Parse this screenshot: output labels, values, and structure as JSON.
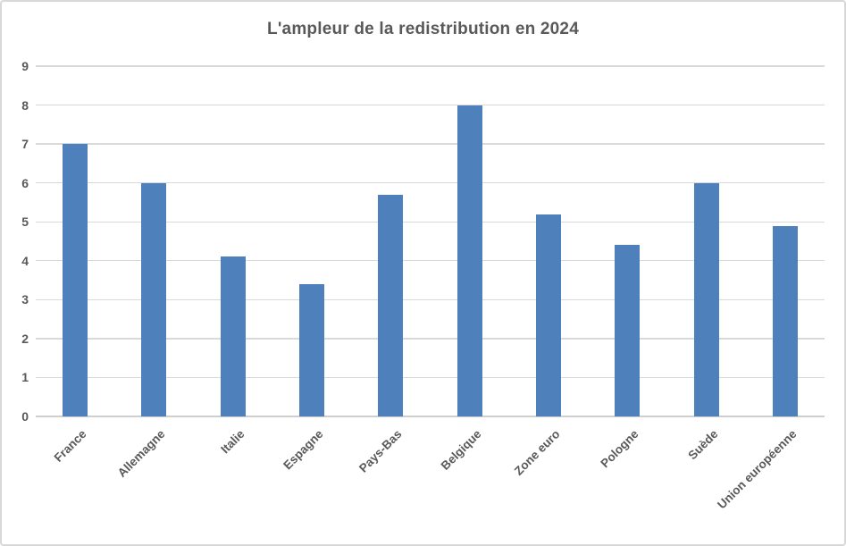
{
  "chart_data": {
    "type": "bar",
    "title": "L'ampleur de la redistribution en 2024",
    "categories": [
      "France",
      "Allemagne",
      "Italie",
      "Espagne",
      "Pays-Bas",
      "Belgique",
      "Zone euro",
      "Pologne",
      "Suède",
      "Union européenne"
    ],
    "values": [
      7,
      6,
      4.1,
      3.4,
      5.7,
      8,
      5.2,
      4.4,
      6,
      4.9
    ],
    "xlabel": "",
    "ylabel": "",
    "ylim": [
      0,
      9
    ],
    "yticks": [
      0,
      1,
      2,
      3,
      4,
      5,
      6,
      7,
      8,
      9
    ],
    "grid": "horizontal",
    "legend": "none",
    "bar_color": "#4e81bc",
    "title_color": "#595959",
    "axis_text_color": "#595959",
    "gridline_color": "#d9d9d9",
    "axis_line_color": "#cfcfcf"
  }
}
